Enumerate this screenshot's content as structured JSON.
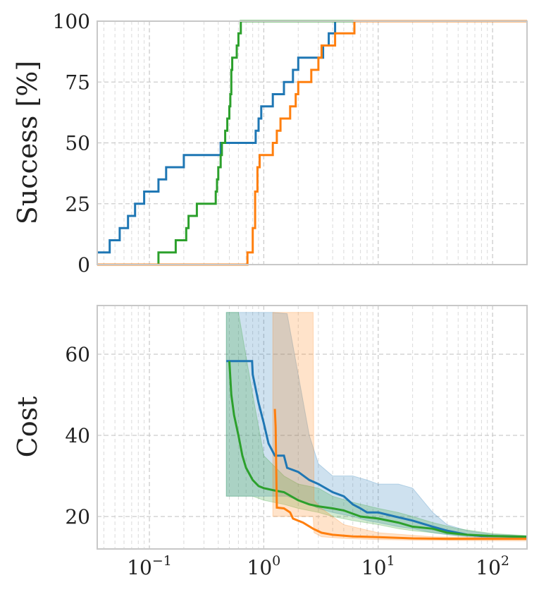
{
  "chart_data": [
    {
      "type": "line",
      "xscale": "log",
      "xlim": [
        0.035,
        200
      ],
      "ylim": [
        0,
        100
      ],
      "ylabel": "Success [%]",
      "xlabel": "",
      "yticks": [
        "0",
        "25",
        "50",
        "75",
        "100"
      ],
      "ytick_values": [
        0,
        25,
        50,
        75,
        100
      ],
      "grid": true,
      "series": [
        {
          "color": "#1f77b4",
          "points": [
            [
              0.035,
              5
            ],
            [
              0.045,
              5
            ],
            [
              0.045,
              10
            ],
            [
              0.055,
              10
            ],
            [
              0.055,
              15
            ],
            [
              0.065,
              15
            ],
            [
              0.065,
              20
            ],
            [
              0.075,
              20
            ],
            [
              0.075,
              25
            ],
            [
              0.09,
              25
            ],
            [
              0.09,
              30
            ],
            [
              0.12,
              30
            ],
            [
              0.12,
              35
            ],
            [
              0.14,
              35
            ],
            [
              0.14,
              40
            ],
            [
              0.2,
              40
            ],
            [
              0.2,
              45
            ],
            [
              0.42,
              45
            ],
            [
              0.42,
              50
            ],
            [
              0.85,
              50
            ],
            [
              0.85,
              55
            ],
            [
              0.9,
              55
            ],
            [
              0.9,
              60
            ],
            [
              0.95,
              60
            ],
            [
              0.95,
              65
            ],
            [
              1.2,
              65
            ],
            [
              1.2,
              70
            ],
            [
              1.5,
              70
            ],
            [
              1.5,
              75
            ],
            [
              1.8,
              75
            ],
            [
              1.8,
              80
            ],
            [
              2.0,
              80
            ],
            [
              2.0,
              85
            ],
            [
              3.3,
              85
            ],
            [
              3.3,
              90
            ],
            [
              3.7,
              90
            ],
            [
              3.7,
              95
            ],
            [
              4.2,
              95
            ],
            [
              4.2,
              100
            ],
            [
              200,
              100
            ]
          ]
        },
        {
          "color": "#2ca02c",
          "points": [
            [
              0.035,
              0
            ],
            [
              0.12,
              0
            ],
            [
              0.12,
              5
            ],
            [
              0.17,
              5
            ],
            [
              0.17,
              10
            ],
            [
              0.21,
              10
            ],
            [
              0.21,
              15
            ],
            [
              0.22,
              15
            ],
            [
              0.22,
              20
            ],
            [
              0.26,
              20
            ],
            [
              0.26,
              25
            ],
            [
              0.38,
              25
            ],
            [
              0.38,
              30
            ],
            [
              0.39,
              30
            ],
            [
              0.39,
              35
            ],
            [
              0.4,
              35
            ],
            [
              0.4,
              40
            ],
            [
              0.42,
              40
            ],
            [
              0.42,
              45
            ],
            [
              0.43,
              45
            ],
            [
              0.43,
              50
            ],
            [
              0.46,
              50
            ],
            [
              0.46,
              55
            ],
            [
              0.48,
              55
            ],
            [
              0.48,
              60
            ],
            [
              0.5,
              60
            ],
            [
              0.5,
              65
            ],
            [
              0.51,
              65
            ],
            [
              0.51,
              70
            ],
            [
              0.52,
              70
            ],
            [
              0.52,
              80
            ],
            [
              0.53,
              80
            ],
            [
              0.53,
              85
            ],
            [
              0.58,
              85
            ],
            [
              0.58,
              90
            ],
            [
              0.6,
              90
            ],
            [
              0.6,
              95
            ],
            [
              0.63,
              95
            ],
            [
              0.63,
              100
            ],
            [
              200,
              100
            ]
          ]
        },
        {
          "color": "#ff7f0e",
          "points": [
            [
              0.035,
              0
            ],
            [
              0.72,
              0
            ],
            [
              0.72,
              5
            ],
            [
              0.8,
              5
            ],
            [
              0.8,
              15
            ],
            [
              0.84,
              15
            ],
            [
              0.84,
              30
            ],
            [
              0.88,
              30
            ],
            [
              0.88,
              40
            ],
            [
              0.92,
              40
            ],
            [
              0.92,
              45
            ],
            [
              1.2,
              45
            ],
            [
              1.2,
              50
            ],
            [
              1.3,
              50
            ],
            [
              1.3,
              55
            ],
            [
              1.4,
              55
            ],
            [
              1.4,
              60
            ],
            [
              1.7,
              60
            ],
            [
              1.7,
              65
            ],
            [
              1.9,
              65
            ],
            [
              1.9,
              70
            ],
            [
              2.0,
              70
            ],
            [
              2.0,
              75
            ],
            [
              2.6,
              75
            ],
            [
              2.6,
              80
            ],
            [
              3.0,
              80
            ],
            [
              3.0,
              85
            ],
            [
              3.2,
              85
            ],
            [
              3.2,
              90
            ],
            [
              4.2,
              90
            ],
            [
              4.2,
              95
            ],
            [
              6.2,
              95
            ],
            [
              6.2,
              100
            ],
            [
              200,
              100
            ]
          ]
        }
      ]
    },
    {
      "type": "line",
      "xscale": "log",
      "xlim": [
        0.035,
        200
      ],
      "ylim": [
        12,
        72
      ],
      "ylabel": "Cost",
      "xlabel": "",
      "yticks": [
        "20",
        "40",
        "60"
      ],
      "ytick_values": [
        20,
        40,
        60
      ],
      "xticks": [
        "10",
        "10",
        "10",
        "10"
      ],
      "xtick_exponents": [
        "−1",
        "0",
        "1",
        "2"
      ],
      "xtick_values": [
        0.1,
        1,
        10,
        100
      ],
      "grid": true,
      "series": [
        {
          "color": "#1f77b4",
          "points": [
            [
              0.47,
              58.3
            ],
            [
              0.79,
              58.3
            ],
            [
              0.8,
              55
            ],
            [
              0.9,
              48
            ],
            [
              1.0,
              43
            ],
            [
              1.1,
              38
            ],
            [
              1.25,
              35
            ],
            [
              1.5,
              35
            ],
            [
              1.6,
              32
            ],
            [
              2.0,
              31
            ],
            [
              2.5,
              29
            ],
            [
              3.0,
              28
            ],
            [
              4.0,
              26
            ],
            [
              5.0,
              25
            ],
            [
              6.0,
              23
            ],
            [
              7.0,
              22
            ],
            [
              8.0,
              21
            ],
            [
              10,
              21
            ],
            [
              14,
              20
            ],
            [
              20,
              19
            ],
            [
              30,
              17.5
            ],
            [
              40,
              16.5
            ],
            [
              60,
              15.5
            ],
            [
              80,
              15.2
            ],
            [
              200,
              15
            ]
          ],
          "band": [
            [
              0.47,
              25,
              70.3
            ],
            [
              1.2,
              25,
              70.3
            ],
            [
              1.6,
              25,
              70
            ],
            [
              2.0,
              24,
              55
            ],
            [
              2.5,
              23,
              40
            ],
            [
              3,
              22,
              33
            ],
            [
              4,
              21,
              30
            ],
            [
              6,
              20,
              30
            ],
            [
              8,
              19,
              29
            ],
            [
              10,
              18.5,
              28
            ],
            [
              15,
              17.5,
              28
            ],
            [
              20,
              17,
              27
            ],
            [
              30,
              16,
              21
            ],
            [
              40,
              15.5,
              18
            ],
            [
              60,
              15,
              16.5
            ],
            [
              100,
              14.7,
              15.6
            ],
            [
              200,
              14.6,
              15.2
            ]
          ]
        },
        {
          "color": "#2ca02c",
          "points": [
            [
              0.5,
              58.3
            ],
            [
              0.52,
              50
            ],
            [
              0.55,
              45
            ],
            [
              0.6,
              40
            ],
            [
              0.65,
              35
            ],
            [
              0.7,
              32
            ],
            [
              0.8,
              29
            ],
            [
              0.9,
              27.5
            ],
            [
              1.0,
              27
            ],
            [
              1.2,
              26.5
            ],
            [
              1.5,
              26
            ],
            [
              2.0,
              24
            ],
            [
              2.5,
              23
            ],
            [
              3.0,
              22.5
            ],
            [
              4.0,
              22
            ],
            [
              5.0,
              21.5
            ],
            [
              7.0,
              20
            ],
            [
              10,
              19.5
            ],
            [
              15,
              18.5
            ],
            [
              20,
              17.5
            ],
            [
              30,
              17
            ],
            [
              40,
              16
            ],
            [
              60,
              15.5
            ],
            [
              100,
              15.2
            ],
            [
              200,
              15
            ]
          ],
          "band": [
            [
              0.47,
              25,
              70.3
            ],
            [
              0.6,
              25,
              70.3
            ],
            [
              0.8,
              25,
              50
            ],
            [
              1.0,
              24,
              35
            ],
            [
              1.5,
              23,
              30
            ],
            [
              2,
              22,
              28
            ],
            [
              3,
              21,
              27
            ],
            [
              4,
              20,
              25
            ],
            [
              6,
              19,
              23.5
            ],
            [
              10,
              18,
              22
            ],
            [
              15,
              17,
              21
            ],
            [
              20,
              16.5,
              20
            ],
            [
              30,
              16,
              18.5
            ],
            [
              50,
              15.3,
              17
            ],
            [
              100,
              15,
              15.8
            ],
            [
              200,
              14.8,
              15.3
            ]
          ]
        },
        {
          "color": "#ff7f0e",
          "points": [
            [
              1.25,
              46.5
            ],
            [
              1.27,
              42
            ],
            [
              1.3,
              22.2
            ],
            [
              1.5,
              22
            ],
            [
              1.7,
              21
            ],
            [
              1.8,
              19.5
            ],
            [
              2.2,
              18.5
            ],
            [
              2.7,
              17
            ],
            [
              3.2,
              16
            ],
            [
              4,
              15.5
            ],
            [
              6,
              15.1
            ],
            [
              10,
              14.9
            ],
            [
              20,
              14.6
            ],
            [
              40,
              14.5
            ],
            [
              200,
              14.5
            ]
          ],
          "band": [
            [
              1.2,
              20,
              70.3
            ],
            [
              2.7,
              20,
              70.3
            ],
            [
              2.75,
              16,
              24
            ],
            [
              3.2,
              15,
              22
            ],
            [
              5,
              14.6,
              18
            ],
            [
              10,
              14.3,
              16
            ],
            [
              30,
              14.1,
              15
            ],
            [
              200,
              14,
              14.8
            ]
          ]
        }
      ]
    }
  ]
}
